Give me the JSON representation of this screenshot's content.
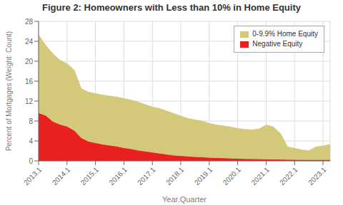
{
  "chart_data": {
    "type": "area",
    "title": "Figure 2: Homeowners with Less than 10% in Home Equity",
    "xlabel": "Year.Quarter",
    "ylabel": "Percent of Mortgages (Weight: Count)",
    "categories": [
      "2013.1",
      null,
      null,
      null,
      "2014.1",
      null,
      null,
      null,
      "2015.1",
      null,
      null,
      null,
      "2016.1",
      null,
      null,
      null,
      "2017.1",
      null,
      null,
      null,
      "2018.1",
      null,
      null,
      null,
      "2019.1",
      null,
      null,
      null,
      "2020.1",
      null,
      null,
      null,
      "2021.1",
      null,
      null,
      null,
      "2022.1",
      null,
      null,
      null,
      "2023.1",
      null
    ],
    "series": [
      {
        "name": "0-9.9% Home Equity",
        "color": "#d4c87a",
        "values": [
          25.2,
          23.2,
          21.5,
          20.2,
          19.5,
          18.2,
          14.5,
          13.8,
          13.5,
          13.2,
          13.0,
          12.8,
          12.5,
          12.2,
          11.8,
          11.3,
          10.8,
          10.5,
          10.0,
          9.5,
          9.0,
          8.5,
          8.2,
          8.0,
          7.5,
          7.2,
          7.0,
          6.8,
          6.5,
          6.3,
          6.2,
          6.4,
          7.2,
          6.8,
          5.5,
          2.8,
          2.5,
          2.2,
          2.0,
          2.8,
          3.0,
          3.3
        ]
      },
      {
        "name": "Negative Equity",
        "color": "#e82020",
        "values": [
          9.5,
          9.0,
          7.8,
          7.2,
          6.8,
          6.0,
          4.5,
          3.8,
          3.5,
          3.2,
          3.0,
          2.8,
          2.5,
          2.3,
          2.0,
          1.8,
          1.6,
          1.4,
          1.2,
          1.0,
          0.9,
          0.8,
          0.7,
          0.65,
          0.55,
          0.5,
          0.45,
          0.4,
          0.35,
          0.3,
          0.28,
          0.25,
          0.22,
          0.2,
          0.18,
          0.15,
          0.13,
          0.11,
          0.1,
          0.1,
          0.1,
          0.12
        ]
      }
    ],
    "ylim": [
      0,
      28
    ],
    "yticks": [
      0,
      4,
      8,
      12,
      16,
      20,
      24,
      28
    ],
    "grid": true,
    "legend": "upper right",
    "stacked": false
  }
}
